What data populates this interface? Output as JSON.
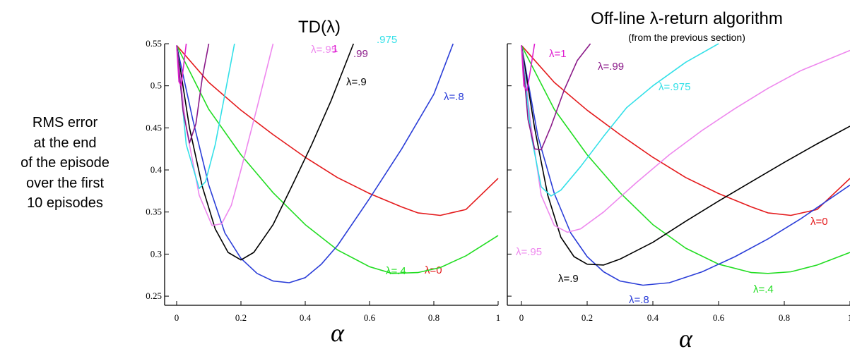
{
  "ylabel_lines": [
    "RMS error",
    "at the end",
    "of the episode",
    "over the first",
    "10 episodes"
  ],
  "chart_data": [
    {
      "type": "line",
      "title": "TD(λ)",
      "subtitle": "",
      "xlabel": "α",
      "ylabel": "RMS error at the end of the episode over the first 10 episodes",
      "xlim": [
        0,
        1
      ],
      "ylim": [
        0.24,
        0.55
      ],
      "xticks": [
        "0",
        "0.2",
        "0.4",
        "0.6",
        "0.8",
        "1"
      ],
      "yticks": [
        "0.25",
        "0.3",
        "0.35",
        "0.4",
        "0.45",
        "0.5",
        "0.55"
      ],
      "grid": false,
      "series": [
        {
          "name": "λ=0",
          "color": "#e41a1c",
          "label": "λ=0",
          "points": [
            [
              0,
              0.548
            ],
            [
              0.1,
              0.504
            ],
            [
              0.2,
              0.471
            ],
            [
              0.3,
              0.442
            ],
            [
              0.4,
              0.415
            ],
            [
              0.5,
              0.391
            ],
            [
              0.6,
              0.372
            ],
            [
              0.7,
              0.356
            ],
            [
              0.75,
              0.349
            ],
            [
              0.82,
              0.346
            ],
            [
              0.9,
              0.353
            ],
            [
              1.0,
              0.39
            ]
          ]
        },
        {
          "name": "λ=.4",
          "color": "#22dd22",
          "label": "λ=.4",
          "points": [
            [
              0,
              0.548
            ],
            [
              0.1,
              0.472
            ],
            [
              0.2,
              0.418
            ],
            [
              0.3,
              0.373
            ],
            [
              0.4,
              0.335
            ],
            [
              0.5,
              0.305
            ],
            [
              0.6,
              0.285
            ],
            [
              0.67,
              0.277
            ],
            [
              0.75,
              0.278
            ],
            [
              0.82,
              0.284
            ],
            [
              0.9,
              0.298
            ],
            [
              1.0,
              0.322
            ]
          ]
        },
        {
          "name": "λ=.8",
          "color": "#2b3ed8",
          "label": "λ=.8",
          "points": [
            [
              0,
              0.548
            ],
            [
              0.05,
              0.46
            ],
            [
              0.1,
              0.382
            ],
            [
              0.15,
              0.325
            ],
            [
              0.2,
              0.295
            ],
            [
              0.25,
              0.277
            ],
            [
              0.3,
              0.268
            ],
            [
              0.35,
              0.266
            ],
            [
              0.4,
              0.272
            ],
            [
              0.45,
              0.288
            ],
            [
              0.5,
              0.31
            ],
            [
              0.6,
              0.366
            ],
            [
              0.7,
              0.425
            ],
            [
              0.8,
              0.49
            ],
            [
              0.86,
              0.55
            ]
          ]
        },
        {
          "name": "λ=.9",
          "color": "#000000",
          "label": "λ=.9",
          "points": [
            [
              0,
              0.548
            ],
            [
              0.04,
              0.45
            ],
            [
              0.08,
              0.38
            ],
            [
              0.12,
              0.33
            ],
            [
              0.16,
              0.302
            ],
            [
              0.2,
              0.293
            ],
            [
              0.24,
              0.302
            ],
            [
              0.3,
              0.335
            ],
            [
              0.36,
              0.382
            ],
            [
              0.42,
              0.43
            ],
            [
              0.48,
              0.482
            ],
            [
              0.55,
              0.55
            ]
          ]
        },
        {
          "name": "λ=.95",
          "color": "#ee88ee",
          "label": "λ=.95",
          "points": [
            [
              0,
              0.548
            ],
            [
              0.03,
              0.45
            ],
            [
              0.07,
              0.37
            ],
            [
              0.11,
              0.334
            ],
            [
              0.14,
              0.336
            ],
            [
              0.17,
              0.358
            ],
            [
              0.2,
              0.4
            ],
            [
              0.25,
              0.474
            ],
            [
              0.3,
              0.55
            ]
          ]
        },
        {
          "name": "λ=.975",
          "color": "#33e0e8",
          "label": ".975",
          "points": [
            [
              0,
              0.548
            ],
            [
              0.03,
              0.43
            ],
            [
              0.07,
              0.378
            ],
            [
              0.09,
              0.386
            ],
            [
              0.12,
              0.43
            ],
            [
              0.15,
              0.49
            ],
            [
              0.18,
              0.55
            ]
          ]
        },
        {
          "name": "λ=.99",
          "color": "#8b1a89",
          "label": ".99",
          "points": [
            [
              0,
              0.548
            ],
            [
              0.02,
              0.47
            ],
            [
              0.04,
              0.432
            ],
            [
              0.06,
              0.455
            ],
            [
              0.08,
              0.51
            ],
            [
              0.1,
              0.55
            ]
          ]
        },
        {
          "name": "λ=1",
          "color": "#e01fd0",
          "label": "1",
          "points": [
            [
              0,
              0.548
            ],
            [
              0.007,
              0.505
            ],
            [
              0.014,
              0.5
            ],
            [
              0.022,
              0.525
            ],
            [
              0.03,
              0.55
            ]
          ]
        }
      ]
    },
    {
      "type": "line",
      "title": "Off-line λ-return algorithm",
      "subtitle": "(from the previous section)",
      "xlabel": "α",
      "ylabel": "",
      "xlim": [
        0,
        1
      ],
      "ylim": [
        0.24,
        0.55
      ],
      "xticks": [
        "0",
        "0.2",
        "0.4",
        "0.6",
        "0.8",
        "1"
      ],
      "yticks": [],
      "grid": false,
      "series": [
        {
          "name": "λ=0",
          "color": "#e41a1c",
          "label": "λ=0",
          "points": [
            [
              0,
              0.548
            ],
            [
              0.1,
              0.504
            ],
            [
              0.2,
              0.471
            ],
            [
              0.3,
              0.442
            ],
            [
              0.4,
              0.415
            ],
            [
              0.5,
              0.391
            ],
            [
              0.6,
              0.372
            ],
            [
              0.7,
              0.356
            ],
            [
              0.75,
              0.349
            ],
            [
              0.82,
              0.346
            ],
            [
              0.9,
              0.353
            ],
            [
              1.0,
              0.39
            ]
          ]
        },
        {
          "name": "λ=.4",
          "color": "#22dd22",
          "label": "λ=.4",
          "points": [
            [
              0,
              0.548
            ],
            [
              0.1,
              0.472
            ],
            [
              0.2,
              0.418
            ],
            [
              0.3,
              0.373
            ],
            [
              0.4,
              0.335
            ],
            [
              0.5,
              0.307
            ],
            [
              0.6,
              0.288
            ],
            [
              0.7,
              0.278
            ],
            [
              0.75,
              0.277
            ],
            [
              0.82,
              0.279
            ],
            [
              0.9,
              0.287
            ],
            [
              1.0,
              0.302
            ]
          ]
        },
        {
          "name": "λ=.8",
          "color": "#2b3ed8",
          "label": "λ=.8",
          "points": [
            [
              0,
              0.548
            ],
            [
              0.05,
              0.44
            ],
            [
              0.1,
              0.372
            ],
            [
              0.15,
              0.325
            ],
            [
              0.2,
              0.297
            ],
            [
              0.25,
              0.279
            ],
            [
              0.3,
              0.268
            ],
            [
              0.37,
              0.263
            ],
            [
              0.45,
              0.266
            ],
            [
              0.55,
              0.279
            ],
            [
              0.65,
              0.297
            ],
            [
              0.75,
              0.318
            ],
            [
              0.85,
              0.342
            ],
            [
              1.0,
              0.382
            ]
          ]
        },
        {
          "name": "λ=.9",
          "color": "#000000",
          "label": "λ=.9",
          "points": [
            [
              0,
              0.548
            ],
            [
              0.04,
              0.45
            ],
            [
              0.08,
              0.37
            ],
            [
              0.12,
              0.32
            ],
            [
              0.16,
              0.297
            ],
            [
              0.2,
              0.288
            ],
            [
              0.25,
              0.287
            ],
            [
              0.3,
              0.294
            ],
            [
              0.4,
              0.314
            ],
            [
              0.5,
              0.339
            ],
            [
              0.6,
              0.363
            ],
            [
              0.7,
              0.386
            ],
            [
              0.8,
              0.409
            ],
            [
              0.9,
              0.431
            ],
            [
              1.0,
              0.452
            ]
          ]
        },
        {
          "name": "λ=.95",
          "color": "#ee88ee",
          "label": "λ=.95",
          "points": [
            [
              0,
              0.548
            ],
            [
              0.03,
              0.45
            ],
            [
              0.06,
              0.37
            ],
            [
              0.1,
              0.334
            ],
            [
              0.14,
              0.326
            ],
            [
              0.18,
              0.33
            ],
            [
              0.25,
              0.35
            ],
            [
              0.35,
              0.385
            ],
            [
              0.45,
              0.418
            ],
            [
              0.55,
              0.447
            ],
            [
              0.65,
              0.473
            ],
            [
              0.75,
              0.497
            ],
            [
              0.85,
              0.518
            ],
            [
              1.0,
              0.542
            ]
          ]
        },
        {
          "name": "λ=.975",
          "color": "#33e0e8",
          "label": "λ=.975",
          "points": [
            [
              0,
              0.548
            ],
            [
              0.03,
              0.44
            ],
            [
              0.06,
              0.38
            ],
            [
              0.09,
              0.369
            ],
            [
              0.12,
              0.376
            ],
            [
              0.18,
              0.404
            ],
            [
              0.25,
              0.44
            ],
            [
              0.32,
              0.474
            ],
            [
              0.4,
              0.5
            ],
            [
              0.5,
              0.528
            ],
            [
              0.6,
              0.55
            ]
          ]
        },
        {
          "name": "λ=.99",
          "color": "#8b1a89",
          "label": "λ=.99",
          "points": [
            [
              0,
              0.548
            ],
            [
              0.02,
              0.46
            ],
            [
              0.04,
              0.425
            ],
            [
              0.06,
              0.424
            ],
            [
              0.09,
              0.452
            ],
            [
              0.13,
              0.495
            ],
            [
              0.17,
              0.53
            ],
            [
              0.21,
              0.55
            ]
          ]
        },
        {
          "name": "λ=1",
          "color": "#e01fd0",
          "label": "λ=1",
          "points": [
            [
              0,
              0.548
            ],
            [
              0.007,
              0.5
            ],
            [
              0.017,
              0.494
            ],
            [
              0.028,
              0.52
            ],
            [
              0.04,
              0.55
            ]
          ]
        }
      ]
    }
  ]
}
